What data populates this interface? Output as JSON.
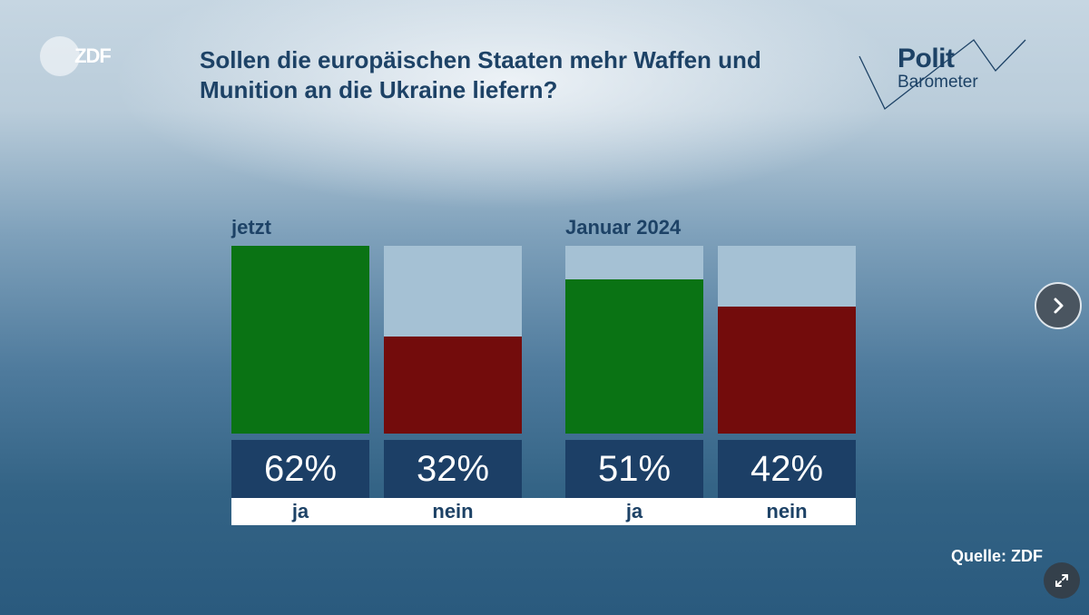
{
  "brand": {
    "logo_text": "ZDF"
  },
  "header": {
    "title": "Sollen die europäischen Staaten mehr Waffen und Munition an die Ukraine liefern?",
    "badge_polit": "Polit",
    "badge_barometer": "Barometer"
  },
  "colors": {
    "ja": "#0a7314",
    "nein": "#730c0c",
    "track": "#a5c1d4",
    "label_box": "#1c3f66",
    "title": "#1d4266"
  },
  "chart_data": {
    "type": "bar",
    "title": "Sollen die europäischen Staaten mehr Waffen und Munition an die Ukraine liefern?",
    "groups": [
      "jetzt",
      "Januar 2024"
    ],
    "categories": [
      "ja",
      "nein"
    ],
    "series": [
      {
        "name": "jetzt",
        "values": [
          62,
          32
        ],
        "labels": [
          "62%",
          "32%"
        ]
      },
      {
        "name": "Januar 2024",
        "values": [
          51,
          42
        ],
        "labels": [
          "51%",
          "42%"
        ]
      }
    ],
    "unit": "%",
    "ylim": [
      0,
      62
    ],
    "grid": false,
    "source": "Quelle: ZDF"
  },
  "controls": {
    "next_icon": "chevron-right-icon",
    "expand_icon": "expand-icon"
  }
}
